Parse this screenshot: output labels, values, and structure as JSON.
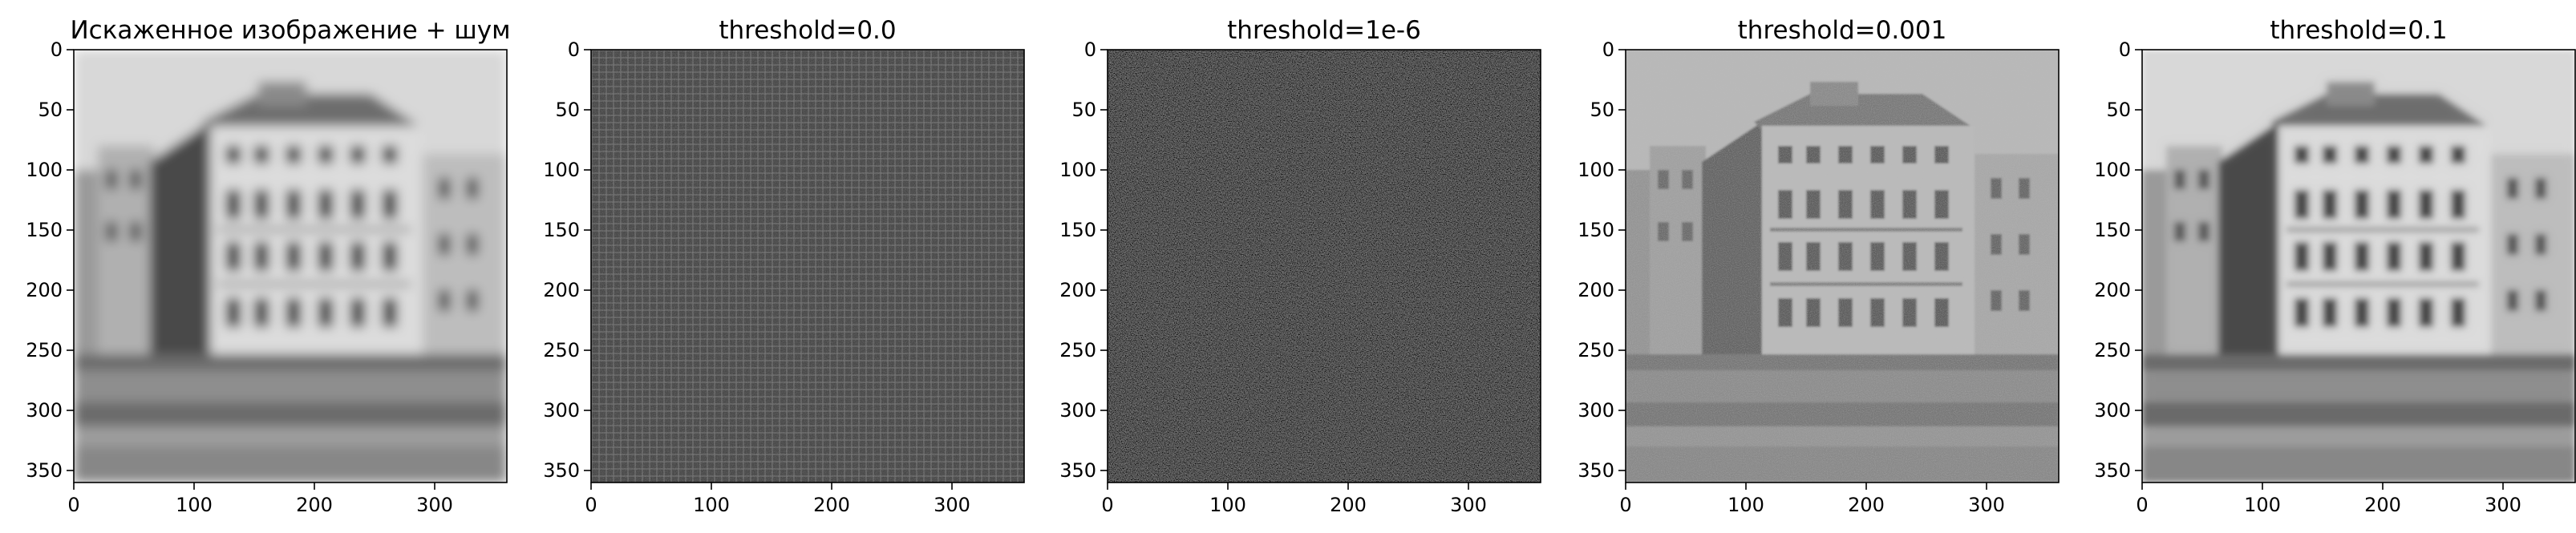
{
  "figure": {
    "panels": [
      {
        "title": "Искаженное изображение + шум",
        "kind": "blurred-noisy"
      },
      {
        "title": "threshold=0.0",
        "kind": "noise-grid"
      },
      {
        "title": "threshold=1e-6",
        "kind": "dark-noise"
      },
      {
        "title": "threshold=0.001",
        "kind": "noisy-sharp"
      },
      {
        "title": "threshold=0.1",
        "kind": "smooth-ringing"
      }
    ],
    "x_ticks": [
      "0",
      "100",
      "200",
      "300"
    ],
    "y_ticks": [
      "0",
      "50",
      "100",
      "150",
      "200",
      "250",
      "300",
      "350"
    ],
    "axis_range": [
      0,
      360
    ],
    "colormap": "gray"
  }
}
